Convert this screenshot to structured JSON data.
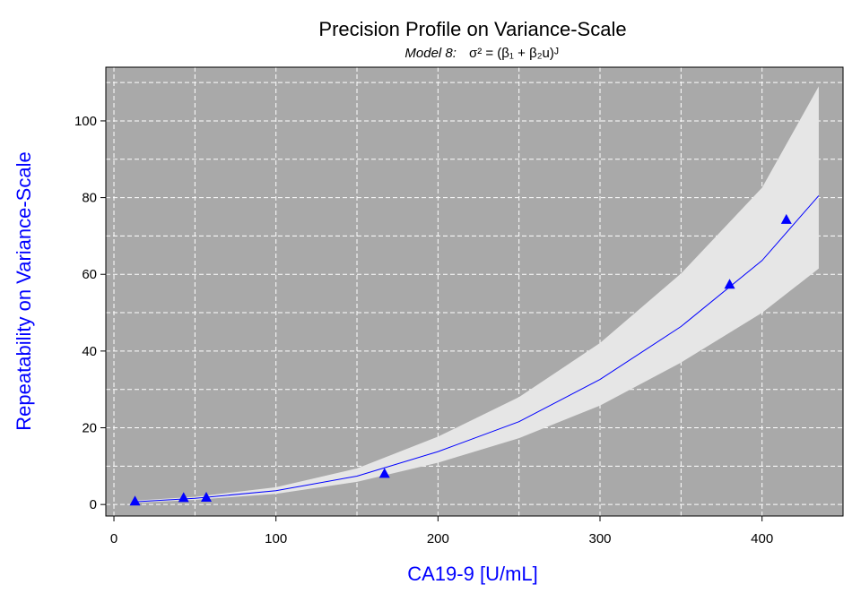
{
  "chart_data": {
    "type": "line",
    "title": "Precision Profile on Variance-Scale",
    "subtitle": {
      "model": "Model 8:",
      "formula": "σ² = (β₁ + β₂u)ᴶ"
    },
    "xlabel": "CA19-9 [U/mL]",
    "ylabel": "Repeatability on Variance-Scale",
    "xlim": [
      -5,
      450
    ],
    "ylim": [
      -3,
      114
    ],
    "xticks": [
      0,
      100,
      200,
      300,
      400
    ],
    "yticks": [
      0,
      20,
      40,
      60,
      80,
      100
    ],
    "grid": true,
    "colors": {
      "panel": "#a9a9a9",
      "grid": "#ffffff",
      "band": "#e6e6e6",
      "fit": "#0000ff",
      "points": "#0000ff",
      "axis_title": "#0000ff"
    },
    "points": {
      "marker": "triangle",
      "x": [
        13,
        43,
        57,
        167,
        380,
        415
      ],
      "y": [
        0.8,
        1.7,
        1.8,
        8.0,
        57.3,
        74.2
      ]
    },
    "fit": {
      "x": [
        12,
        50,
        100,
        150,
        200,
        250,
        300,
        350,
        400,
        435
      ],
      "y": [
        0.7,
        1.6,
        3.6,
        7.4,
        13.8,
        21.6,
        32.6,
        46.4,
        63.6,
        80.5
      ]
    },
    "band": {
      "x": [
        12,
        50,
        100,
        150,
        200,
        250,
        300,
        350,
        400,
        435
      ],
      "lower": [
        0.4,
        1.2,
        2.8,
        5.9,
        10.9,
        17.3,
        25.8,
        37.0,
        50.0,
        61.5
      ],
      "upper": [
        1.0,
        2.0,
        4.5,
        9.4,
        17.7,
        28.0,
        42.1,
        60.2,
        82.6,
        109.0
      ]
    }
  }
}
